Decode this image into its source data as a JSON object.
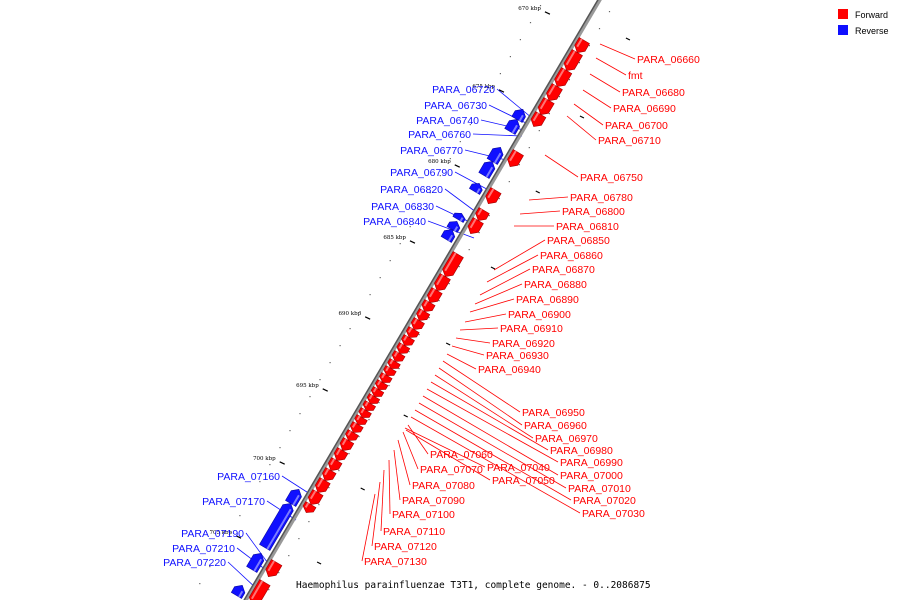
{
  "legend": {
    "forward": {
      "label": "Forward",
      "color": "#ff0000"
    },
    "reverse": {
      "label": "Reverse",
      "color": "#1010ff"
    }
  },
  "caption": "Haemophilus parainfluenzae T3T1, complete genome. - 0..2086875",
  "ticks": [
    "670 kbp",
    "675 kbp",
    "680 kbp",
    "685 kbp",
    "690 kbp",
    "695 kbp",
    "700 kbp",
    "705 kbp"
  ],
  "reverse_labels": [
    "PARA_06720",
    "PARA_06730",
    "PARA_06740",
    "PARA_06760",
    "PARA_06770",
    "PARA_06790",
    "PARA_06820",
    "PARA_06830",
    "PARA_06840",
    "PARA_07160",
    "PARA_07170",
    "PARA_07190",
    "PARA_07210",
    "PARA_07220"
  ],
  "forward_labels": [
    "PARA_06660",
    "fmt",
    "PARA_06680",
    "PARA_06690",
    "PARA_06700",
    "PARA_06710",
    "PARA_06750",
    "PARA_06780",
    "PARA_06800",
    "PARA_06810",
    "PARA_06850",
    "PARA_06860",
    "PARA_06870",
    "PARA_06880",
    "PARA_06890",
    "PARA_06900",
    "PARA_06910",
    "PARA_06920",
    "PARA_06930",
    "PARA_06940",
    "PARA_06950",
    "PARA_06960",
    "PARA_06970",
    "PARA_06980",
    "PARA_06990",
    "PARA_07000",
    "PARA_07010",
    "PARA_07020",
    "PARA_07030",
    "PARA_07060",
    "PARA_07070",
    "PARA_07040",
    "PARA_07050",
    "PARA_07080",
    "PARA_07090",
    "PARA_07100",
    "PARA_07110",
    "PARA_07120",
    "PARA_07130"
  ]
}
